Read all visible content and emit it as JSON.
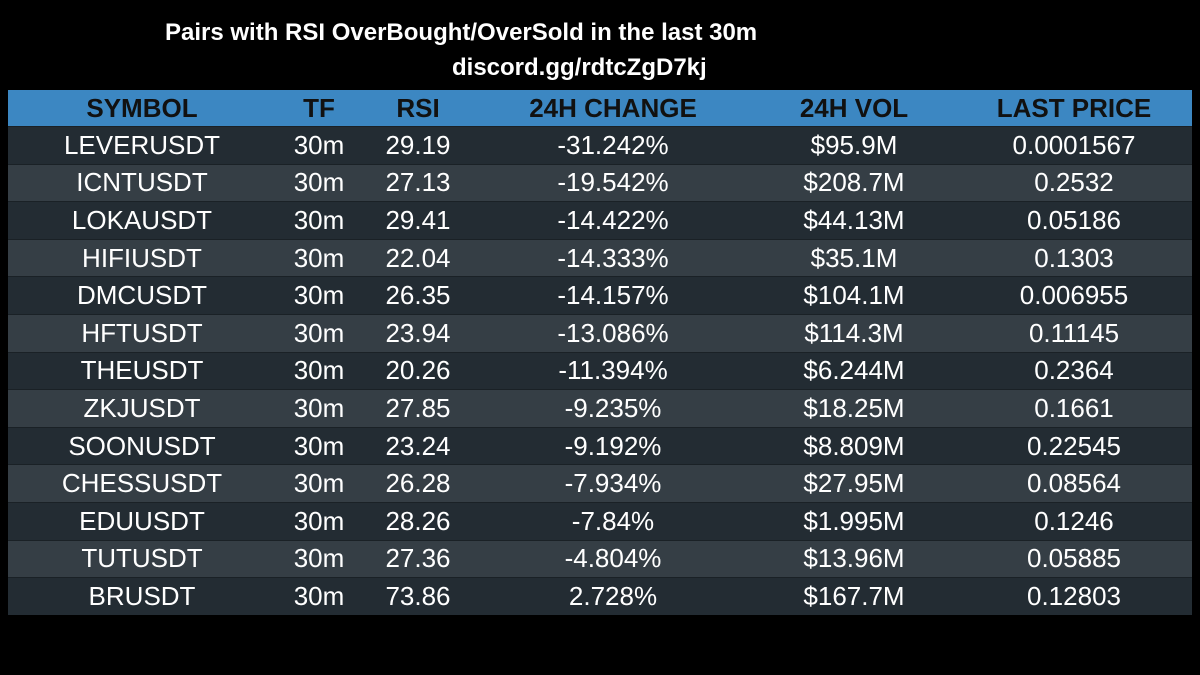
{
  "title": "Pairs with RSI OverBought/OverSold in the last 30m",
  "subtitle": "discord.gg/rdtcZgD7kj",
  "colors": {
    "background": "#000000",
    "header_bg": "#3c87c2",
    "row_odd": "#232c33",
    "row_even": "#353e45",
    "text": "#ffffff",
    "header_text": "#111111"
  },
  "columns": [
    "SYMBOL",
    "TF",
    "RSI",
    "24H CHANGE",
    "24H VOL",
    "LAST PRICE"
  ],
  "rows": [
    [
      "LEVERUSDT",
      "30m",
      "29.19",
      "-31.242%",
      "$95.9M",
      "0.0001567"
    ],
    [
      "ICNTUSDT",
      "30m",
      "27.13",
      "-19.542%",
      "$208.7M",
      "0.2532"
    ],
    [
      "LOKAUSDT",
      "30m",
      "29.41",
      "-14.422%",
      "$44.13M",
      "0.05186"
    ],
    [
      "HIFIUSDT",
      "30m",
      "22.04",
      "-14.333%",
      "$35.1M",
      "0.1303"
    ],
    [
      "DMCUSDT",
      "30m",
      "26.35",
      "-14.157%",
      "$104.1M",
      "0.006955"
    ],
    [
      "HFTUSDT",
      "30m",
      "23.94",
      "-13.086%",
      "$114.3M",
      "0.11145"
    ],
    [
      "THEUSDT",
      "30m",
      "20.26",
      "-11.394%",
      "$6.244M",
      "0.2364"
    ],
    [
      "ZKJUSDT",
      "30m",
      "27.85",
      "-9.235%",
      "$18.25M",
      "0.1661"
    ],
    [
      "SOONUSDT",
      "30m",
      "23.24",
      "-9.192%",
      "$8.809M",
      "0.22545"
    ],
    [
      "CHESSUSDT",
      "30m",
      "26.28",
      "-7.934%",
      "$27.95M",
      "0.08564"
    ],
    [
      "EDUUSDT",
      "30m",
      "28.26",
      "-7.84%",
      "$1.995M",
      "0.1246"
    ],
    [
      "TUTUSDT",
      "30m",
      "27.36",
      "-4.804%",
      "$13.96M",
      "0.05885"
    ],
    [
      "BRUSDT",
      "30m",
      "73.86",
      "2.728%",
      "$167.7M",
      "0.12803"
    ]
  ]
}
